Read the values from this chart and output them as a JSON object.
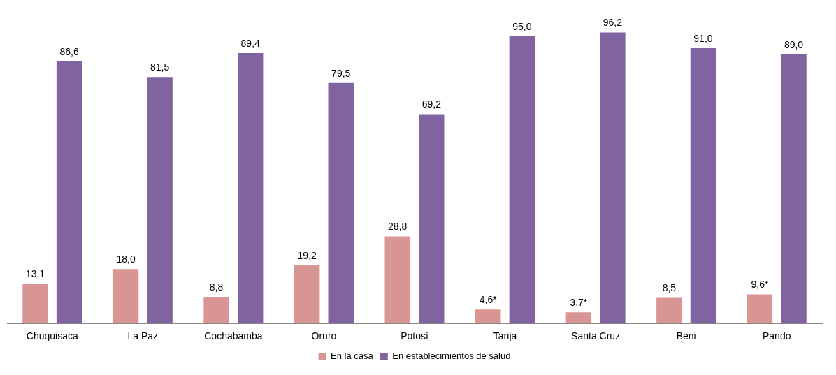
{
  "chart_data": {
    "type": "bar",
    "categories": [
      "Chuquisaca",
      "La Paz",
      "Cochabamba",
      "Oruro",
      "Potosí",
      "Tarija",
      "Santa Cruz",
      "Beni",
      "Pando"
    ],
    "series": [
      {
        "name": "En la casa",
        "color": "#d99594",
        "values": [
          13.1,
          18.0,
          8.8,
          19.2,
          28.8,
          4.6,
          3.7,
          8.5,
          9.6
        ],
        "value_labels": [
          "13,1",
          "18,0",
          "8,8",
          "19,2",
          "28,8",
          "4,6*",
          "3,7*",
          "8,5",
          "9,6*"
        ]
      },
      {
        "name": "En establecimientos de salud",
        "color": "#8064a2",
        "values": [
          86.6,
          81.5,
          89.4,
          79.5,
          69.2,
          95.0,
          96.2,
          91.0,
          89.0
        ],
        "value_labels": [
          "86,6",
          "81,5",
          "89,4",
          "79,5",
          "69,2",
          "95,0",
          "96,2",
          "91,0",
          "89,0"
        ]
      }
    ],
    "legend": "bottom",
    "grid": false
  }
}
